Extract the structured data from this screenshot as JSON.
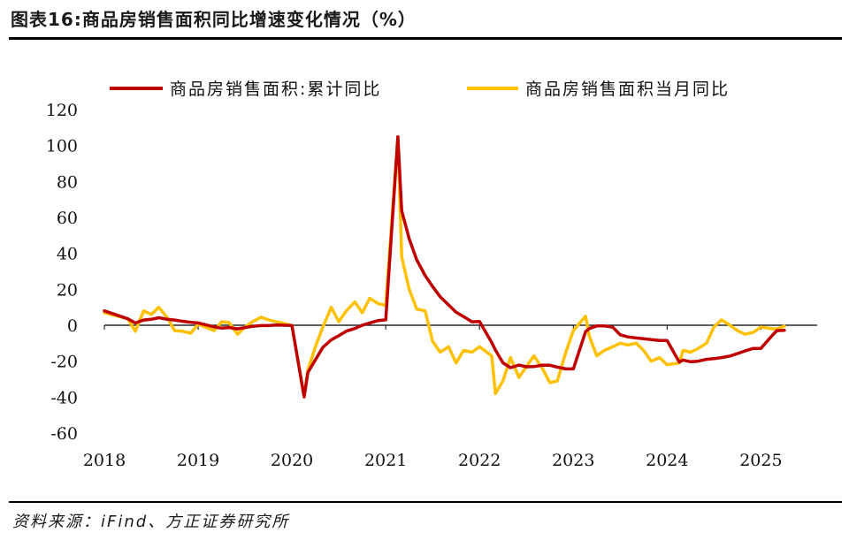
{
  "header": {
    "title": "图表16:商品房销售面积同比增速变化情况（%）"
  },
  "footer": {
    "source": "资料来源：iFind、方正证券研究所"
  },
  "colors": {
    "cumulative": "#c00000",
    "monthly": "#ffc000",
    "axis": "#000000"
  },
  "chart_data": {
    "type": "line",
    "title": "商品房销售面积同比增速变化情况（%）",
    "xlabel": "",
    "ylabel": "",
    "ylim": [
      -60,
      120
    ],
    "yticks": [
      -60,
      -40,
      -20,
      0,
      20,
      40,
      60,
      80,
      100,
      120
    ],
    "xticks": [
      "2018",
      "2019",
      "2020",
      "2021",
      "2022",
      "2023",
      "2024",
      "2025"
    ],
    "xlim": [
      2018.0,
      2025.6
    ],
    "legend_position": "top",
    "series": [
      {
        "name": "商品房销售面积:累计同比",
        "color": "#c00000",
        "x": [
          2018.0,
          2018.25,
          2018.33,
          2018.42,
          2018.5,
          2018.58,
          2018.67,
          2018.75,
          2018.83,
          2018.92,
          2019.0,
          2019.17,
          2019.25,
          2019.33,
          2019.42,
          2019.5,
          2019.58,
          2019.67,
          2019.75,
          2019.83,
          2019.92,
          2020.0,
          2020.13,
          2020.17,
          2020.25,
          2020.33,
          2020.42,
          2020.5,
          2020.58,
          2020.67,
          2020.75,
          2020.83,
          2020.92,
          2021.0,
          2021.13,
          2021.17,
          2021.25,
          2021.33,
          2021.42,
          2021.5,
          2021.58,
          2021.67,
          2021.75,
          2021.83,
          2021.92,
          2022.0,
          2022.13,
          2022.17,
          2022.25,
          2022.33,
          2022.42,
          2022.5,
          2022.58,
          2022.67,
          2022.75,
          2022.83,
          2022.92,
          2023.0,
          2023.13,
          2023.17,
          2023.25,
          2023.33,
          2023.42,
          2023.5,
          2023.58,
          2023.67,
          2023.75,
          2023.83,
          2023.92,
          2024.0,
          2024.13,
          2024.17,
          2024.25,
          2024.33,
          2024.42,
          2024.5,
          2024.58,
          2024.67,
          2024.75,
          2024.83,
          2024.92,
          2025.0,
          2025.13,
          2025.17,
          2025.25
        ],
        "values": [
          8,
          3.6,
          1.3,
          2.9,
          3.3,
          4.2,
          3.3,
          2.9,
          2.2,
          1.6,
          1.3,
          -0.9,
          -1.6,
          -1.3,
          -2.0,
          -1.3,
          -0.6,
          -0.2,
          -0.2,
          0.1,
          0.0,
          -0.1,
          -39.9,
          -26.3,
          -19.3,
          -12.3,
          -8.1,
          -5.8,
          -3.3,
          -1.8,
          0.0,
          1.3,
          2.6,
          3.0,
          104.9,
          63.8,
          48.1,
          36.4,
          27.7,
          21.5,
          15.9,
          11.3,
          7.3,
          4.8,
          1.9,
          2.1,
          -9.6,
          -13.8,
          -20.9,
          -23.6,
          -22.2,
          -23.1,
          -23.0,
          -22.2,
          -22.3,
          -23.3,
          -24.3,
          -24.3,
          -3.6,
          -1.8,
          -0.4,
          -0.4,
          -1.1,
          -5.3,
          -6.5,
          -7.1,
          -7.5,
          -8.0,
          -8.5,
          -8.5,
          -20.5,
          -19.4,
          -20.3,
          -20.0,
          -19.0,
          -18.6,
          -18.0,
          -17.1,
          -15.8,
          -14.3,
          -12.9,
          -12.9,
          -5.1,
          -3.0,
          -2.8
        ]
      },
      {
        "name": "商品房销售面积当月同比",
        "color": "#ffc000",
        "x": [
          2018.0,
          2018.25,
          2018.33,
          2018.42,
          2018.5,
          2018.58,
          2018.67,
          2018.75,
          2018.83,
          2018.92,
          2019.0,
          2019.17,
          2019.25,
          2019.33,
          2019.42,
          2019.5,
          2019.58,
          2019.67,
          2019.75,
          2019.83,
          2019.92,
          2020.0,
          2020.13,
          2020.17,
          2020.25,
          2020.33,
          2020.42,
          2020.5,
          2020.58,
          2020.67,
          2020.75,
          2020.83,
          2020.92,
          2021.0,
          2021.13,
          2021.17,
          2021.25,
          2021.33,
          2021.42,
          2021.5,
          2021.58,
          2021.67,
          2021.75,
          2021.83,
          2021.92,
          2022.0,
          2022.13,
          2022.17,
          2022.25,
          2022.33,
          2022.42,
          2022.5,
          2022.58,
          2022.67,
          2022.75,
          2022.83,
          2022.92,
          2023.0,
          2023.13,
          2023.17,
          2023.25,
          2023.33,
          2023.42,
          2023.5,
          2023.58,
          2023.67,
          2023.75,
          2023.83,
          2023.92,
          2024.0,
          2024.13,
          2024.17,
          2024.25,
          2024.33,
          2024.42,
          2024.5,
          2024.58,
          2024.67,
          2024.75,
          2024.83,
          2024.92,
          2025.0,
          2025.13,
          2025.17,
          2025.25
        ],
        "values": [
          7,
          3.6,
          -3.3,
          8.0,
          6.0,
          10.0,
          4.3,
          -3.0,
          -3.3,
          -4.5,
          0.6,
          -3.0,
          1.9,
          1.5,
          -5.0,
          -1.0,
          2.0,
          4.5,
          3.0,
          2.0,
          1.0,
          -0.2,
          -39.9,
          -25.0,
          -12.0,
          -1.0,
          10.0,
          2.0,
          8.0,
          13.0,
          7.0,
          15.0,
          12.0,
          11.0,
          104.9,
          38.0,
          20.0,
          9.0,
          8.0,
          -9.0,
          -15.0,
          -12.0,
          -21.0,
          -14.0,
          -15.0,
          -12.0,
          -17.0,
          -38.0,
          -31.0,
          -18.0,
          -29.0,
          -23.0,
          -17.0,
          -24.0,
          -32.0,
          -31.0,
          -15.0,
          -3.0,
          5.0,
          -6.0,
          -17.0,
          -14.0,
          -12.0,
          -10.0,
          -11.0,
          -10.0,
          -14.0,
          -20.0,
          -18.0,
          -22.0,
          -21.0,
          -14.0,
          -15.0,
          -13.0,
          -10.0,
          -1.0,
          3.0,
          0.0,
          -3.0,
          -5.0,
          -4.0,
          -1.0,
          -2.0,
          -2.0,
          -0.5
        ]
      }
    ]
  }
}
